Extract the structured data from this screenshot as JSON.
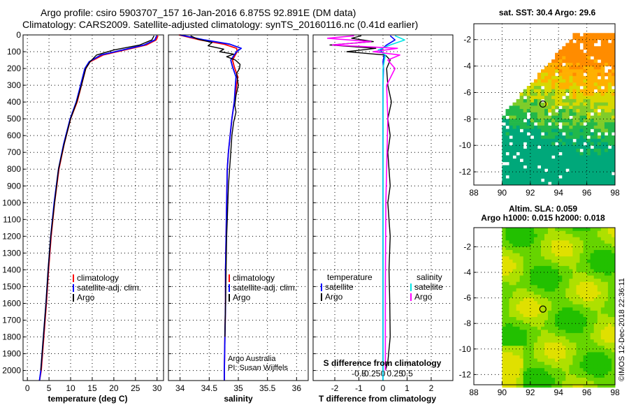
{
  "header": {
    "line1": "Argo profile: csiro 5903707_157 16-Jan-2016 6.875S 92.891E (DM data)",
    "line2": "Climatology: CARS2009. Satellite-adjusted climatology: synTS_20160116.nc (0.41d earlier)"
  },
  "credit": "©IMOS 12-Dec-2018 22:36:11",
  "colors": {
    "climatology": "#ff0000",
    "satellite": "#0000ff",
    "argo": "#000000",
    "sat_salinity": "#00e5e5",
    "argo_salinity": "#ff00ff",
    "grid": "#000000"
  },
  "chart_data": [
    {
      "id": "temperature",
      "type": "line",
      "xlabel": "temperature (deg C)",
      "ylabel": "",
      "xlim": [
        -1,
        31.5
      ],
      "ylim": [
        2060,
        0
      ],
      "xticks": [
        0,
        5,
        10,
        15,
        20,
        25,
        30
      ],
      "xticklabels": [
        "0",
        "5",
        "10",
        "15",
        "20",
        "25",
        "30"
      ],
      "yticks": [
        0,
        100,
        200,
        300,
        400,
        500,
        600,
        700,
        800,
        900,
        1000,
        1100,
        1200,
        1300,
        1400,
        1500,
        1600,
        1700,
        1800,
        1900,
        2000
      ],
      "yticklabels": [
        "0",
        "100",
        "200",
        "300",
        "400",
        "500",
        "600",
        "700",
        "800",
        "900",
        "1000",
        "1100",
        "1200",
        "1300",
        "1400",
        "1500",
        "1600",
        "1700",
        "1800",
        "1900",
        "2000"
      ],
      "legend": {
        "position": "bottom-right",
        "entries": [
          "climatology",
          "satellite-adj. clim.",
          "Argo"
        ]
      },
      "series": [
        {
          "name": "climatology",
          "color": "#ff0000",
          "x": [
            30.2,
            29.8,
            27.5,
            22.5,
            17.5,
            14.5,
            13.5,
            12.5,
            11.5,
            10.0,
            8.5,
            7.3,
            6.3,
            5.5,
            4.9,
            4.4,
            3.8,
            3.2,
            2.8
          ],
          "y": [
            5,
            30,
            60,
            90,
            120,
            160,
            200,
            300,
            400,
            500,
            650,
            800,
            1000,
            1200,
            1400,
            1600,
            1800,
            2000,
            2060
          ]
        },
        {
          "name": "satellite-adj. clim.",
          "color": "#0000ff",
          "x": [
            29.9,
            29.5,
            27.0,
            22.0,
            17.0,
            14.3,
            13.3,
            12.3,
            11.3,
            9.9,
            8.4,
            7.2,
            6.2,
            5.4,
            4.8,
            4.3,
            3.7,
            3.1,
            2.8
          ],
          "y": [
            5,
            30,
            60,
            90,
            120,
            160,
            200,
            300,
            400,
            500,
            650,
            800,
            1000,
            1200,
            1400,
            1600,
            1800,
            2000,
            2060
          ]
        },
        {
          "name": "Argo",
          "color": "#000000",
          "x": [
            29.3,
            28.8,
            26.0,
            20.0,
            16.0,
            14.5,
            13.5,
            12.5,
            11.4,
            10.0,
            8.5,
            7.2,
            6.3,
            5.4,
            4.8,
            4.3,
            3.7,
            3.1
          ],
          "y": [
            5,
            30,
            60,
            90,
            120,
            160,
            200,
            300,
            400,
            500,
            650,
            800,
            1000,
            1200,
            1400,
            1600,
            1800,
            2000
          ]
        }
      ]
    },
    {
      "id": "salinity",
      "type": "line",
      "xlabel": "salinity",
      "ylabel": "",
      "xlim": [
        33.8,
        36.2
      ],
      "ylim": [
        2060,
        0
      ],
      "xticks": [
        34,
        34.5,
        35,
        35.5,
        36
      ],
      "xticklabels": [
        "34",
        "34.5",
        "35",
        "35.5",
        "36"
      ],
      "yticks": [
        0,
        100,
        200,
        300,
        400,
        500,
        600,
        700,
        800,
        900,
        1000,
        1100,
        1200,
        1300,
        1400,
        1500,
        1600,
        1700,
        1800,
        1900,
        2000
      ],
      "legend": {
        "position": "bottom-right",
        "entries": [
          "climatology",
          "satellite-adj. clim.",
          "Argo"
        ]
      },
      "annotations": [
        "Argo Australia",
        "PI: Susan Wijffels"
      ],
      "series": [
        {
          "name": "climatology",
          "color": "#ff0000",
          "x": [
            33.98,
            34.35,
            34.75,
            34.97,
            34.98,
            34.9,
            34.93,
            34.99,
            34.97,
            34.93,
            34.89,
            34.86,
            34.83,
            34.81,
            34.8,
            34.79,
            34.78,
            34.78,
            34.77,
            34.76,
            34.76
          ],
          "y": [
            0,
            30,
            55,
            80,
            100,
            150,
            190,
            250,
            300,
            400,
            500,
            600,
            700,
            800,
            1000,
            1200,
            1400,
            1600,
            1800,
            2000,
            2060
          ]
        },
        {
          "name": "satellite-adj. clim.",
          "color": "#0000ff",
          "x": [
            34.0,
            34.42,
            34.85,
            35.05,
            34.97,
            34.87,
            34.9,
            34.96,
            34.95,
            34.93,
            34.89,
            34.86,
            34.83,
            34.81,
            34.8,
            34.79,
            34.78,
            34.78,
            34.77,
            34.76,
            34.76
          ],
          "y": [
            0,
            30,
            55,
            80,
            100,
            150,
            190,
            250,
            300,
            400,
            500,
            600,
            700,
            800,
            1000,
            1200,
            1400,
            1600,
            1800,
            2000,
            2060
          ]
        },
        {
          "name": "Argo",
          "color": "#000000",
          "x": [
            34.18,
            34.3,
            34.55,
            34.48,
            34.75,
            34.68,
            34.92,
            34.8,
            34.95,
            35.03,
            35.02,
            34.97,
            35.0,
            34.96,
            34.94,
            34.96,
            34.92,
            34.89,
            34.87,
            34.85,
            34.83,
            34.82,
            34.81,
            34.8,
            34.79,
            34.78,
            34.77
          ],
          "y": [
            5,
            25,
            45,
            65,
            85,
            100,
            115,
            130,
            150,
            175,
            200,
            230,
            300,
            360,
            420,
            460,
            520,
            600,
            700,
            800,
            900,
            1000,
            1100,
            1200,
            1400,
            1600,
            1800
          ]
        }
      ]
    },
    {
      "id": "difference",
      "type": "line",
      "xlabel": "T difference from climatology",
      "xlabel2": "S difference from climatology",
      "ylabel": "",
      "xlim": [
        -2.9,
        2.9
      ],
      "ylim": [
        2060,
        0
      ],
      "xticks": [
        -2,
        -1,
        0,
        1,
        2
      ],
      "xticklabels": [
        "-2",
        "-1",
        "0",
        "1",
        "2"
      ],
      "xticks2": [
        -1.0,
        -0.5,
        0,
        0.5,
        1.0
      ],
      "xticklabels2": [
        "-0.5",
        "-0.25",
        "0",
        "0.25",
        "0.5"
      ],
      "yticks": [
        0,
        100,
        200,
        300,
        400,
        500,
        600,
        700,
        800,
        900,
        1000,
        1100,
        1200,
        1300,
        1400,
        1500,
        1600,
        1700,
        1800,
        1900,
        2000
      ],
      "legend": {
        "position": "bottom",
        "temperature_title": "temperature",
        "salinity_title": "salinity",
        "temperature_entries": [
          "satellite",
          "Argo"
        ],
        "salinity_entries": [
          "satellite",
          "Argo"
        ]
      },
      "series": [
        {
          "name": "temperature satellite",
          "color": "#0000ff",
          "x": [
            0.3,
            0.5,
            0.15,
            -0.1,
            0.05,
            0.0,
            0.02,
            0.0,
            0.0,
            0.0,
            0.0,
            0.0,
            0.0
          ],
          "y": [
            5,
            30,
            60,
            90,
            120,
            160,
            200,
            300,
            500,
            800,
            1200,
            1600,
            2060
          ]
        },
        {
          "name": "temperature Argo",
          "color": "#000000",
          "x": [
            -0.9,
            -1.3,
            -0.4,
            -2.2,
            -0.3,
            -1.5,
            0.1,
            0.3,
            0.15,
            0.2,
            0.35,
            0.2,
            0.3,
            0.2,
            0.25,
            0.3,
            0.2,
            0.3,
            0.25,
            0.28,
            0.3,
            0.2,
            0.1
          ],
          "y": [
            5,
            20,
            40,
            60,
            80,
            100,
            120,
            150,
            200,
            300,
            400,
            500,
            600,
            700,
            800,
            900,
            1000,
            1200,
            1400,
            1600,
            1800,
            1950,
            2000
          ]
        },
        {
          "name": "salinity satellite",
          "color": "#00e5e5",
          "x": [
            0.5,
            0.9,
            0.3,
            -0.2,
            0.1,
            0.05,
            0.0,
            0.0,
            0.0,
            0.0
          ],
          "y": [
            5,
            30,
            60,
            90,
            120,
            160,
            200,
            400,
            1000,
            2060
          ]
        },
        {
          "name": "salinity Argo",
          "color": "#ff00ff",
          "x": [
            -1.2,
            -2.3,
            -0.5,
            -2.1,
            0.6,
            -0.4,
            0.7,
            0.2,
            0.5,
            0.15,
            0.2,
            0.12,
            0.1,
            0.1
          ],
          "y": [
            5,
            20,
            40,
            60,
            80,
            100,
            120,
            150,
            200,
            300,
            500,
            1000,
            1500,
            2000
          ]
        }
      ]
    },
    {
      "id": "sst_map",
      "type": "heatmap",
      "title": "sat. SST: 30.4 Argo: 29.6",
      "xlim": [
        88,
        98
      ],
      "ylim": [
        -13,
        -0.8
      ],
      "xticks": [
        88,
        90,
        92,
        94,
        96,
        98
      ],
      "xticklabels": [
        "88",
        "90",
        "92",
        "94",
        "96",
        "98"
      ],
      "yticks": [
        -12,
        -10,
        -8,
        -6,
        -4,
        -2
      ],
      "yticklabels": [
        "-12",
        "-10",
        "-8",
        "-6",
        "-4",
        "-2"
      ],
      "data_region": {
        "lon": [
          90,
          98
        ],
        "lat": [
          -13,
          -1.5
        ]
      },
      "color_scale": [
        "#00a87a",
        "#22b84a",
        "#7fcc2a",
        "#d8d800",
        "#ffb000",
        "#ff8c00"
      ],
      "marker": {
        "lon": 92.891,
        "lat": -6.875
      }
    },
    {
      "id": "sla_map",
      "type": "heatmap",
      "title": "Altim. SLA: 0.059",
      "subtitle": "Argo h1000: 0.015 h2000: 0.018",
      "xlim": [
        88,
        98
      ],
      "ylim": [
        -12.8,
        -0.5
      ],
      "xticks": [
        88,
        90,
        92,
        94,
        96,
        98
      ],
      "xticklabels": [
        "88",
        "90",
        "92",
        "94",
        "96",
        "98"
      ],
      "yticks": [
        -12,
        -10,
        -8,
        -6,
        -4,
        -2
      ],
      "yticklabels": [
        "-12",
        "-10",
        "-8",
        "-6",
        "-4",
        "-2"
      ],
      "data_region": {
        "lon": [
          90,
          98
        ],
        "lat": [
          -12.8,
          -0.5
        ]
      },
      "color_scale": [
        "#22c000",
        "#66d400",
        "#aee000",
        "#e0e000"
      ],
      "marker": {
        "lon": 92.891,
        "lat": -6.875
      }
    }
  ]
}
